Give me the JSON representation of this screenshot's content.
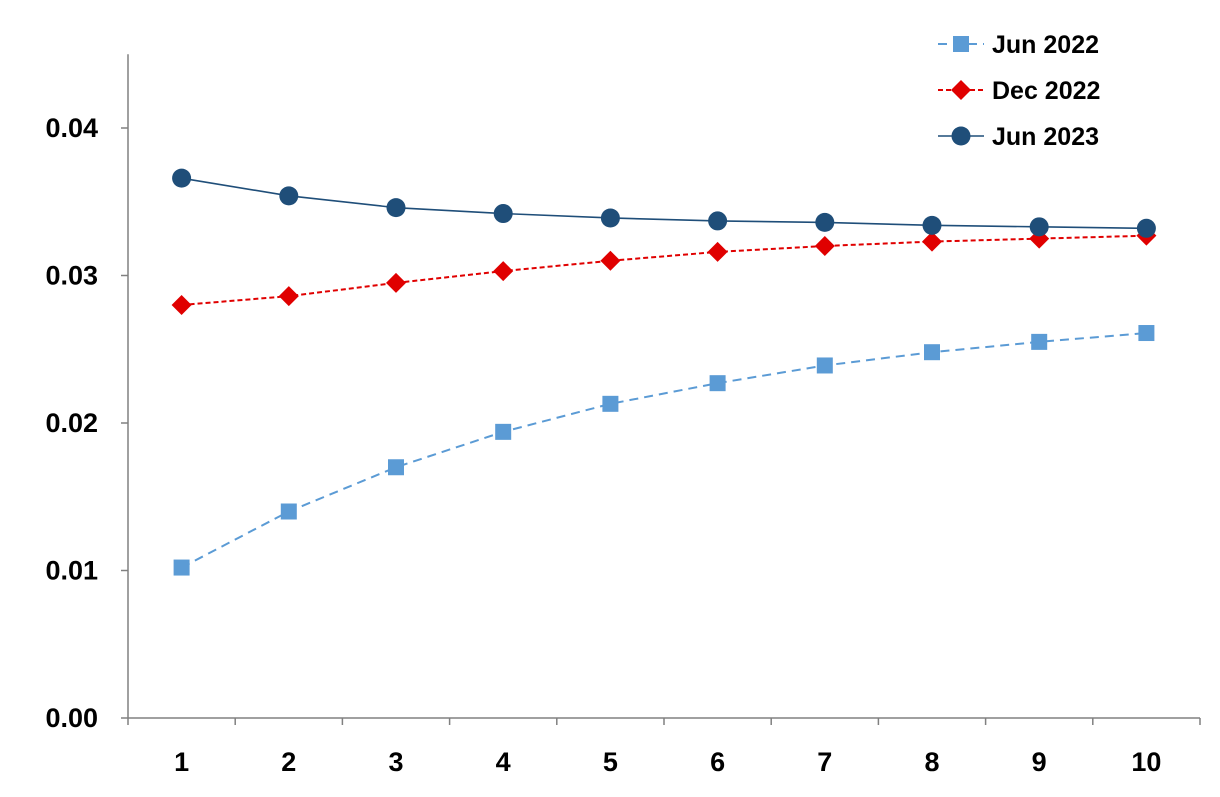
{
  "chart_data": {
    "type": "line",
    "title": "",
    "xlabel": "",
    "ylabel": "",
    "x": [
      1,
      2,
      3,
      4,
      5,
      6,
      7,
      8,
      9,
      10
    ],
    "x_tick_labels": [
      "1",
      "2",
      "3",
      "4",
      "5",
      "6",
      "7",
      "8",
      "9",
      "10"
    ],
    "ylim": [
      0,
      0.045
    ],
    "y_ticks": [
      0,
      0.01,
      0.02,
      0.03,
      0.04
    ],
    "y_tick_labels": [
      "0.00",
      "0.01",
      "0.02",
      "0.03",
      "0.04"
    ],
    "grid": false,
    "legend_position": "top-right",
    "series": [
      {
        "name": "Jun 2022",
        "color": "#5B9BD5",
        "line_style": "dashed",
        "marker": "square",
        "values": [
          0.0102,
          0.014,
          0.017,
          0.0194,
          0.0213,
          0.0227,
          0.0239,
          0.0248,
          0.0255,
          0.0261
        ]
      },
      {
        "name": "Dec 2022",
        "color": "#E00000",
        "line_style": "dotted",
        "marker": "diamond",
        "values": [
          0.028,
          0.0286,
          0.0295,
          0.0303,
          0.031,
          0.0316,
          0.032,
          0.0323,
          0.0325,
          0.0327
        ]
      },
      {
        "name": "Jun 2023",
        "color": "#1F4E79",
        "line_style": "solid",
        "marker": "circle",
        "values": [
          0.0366,
          0.0354,
          0.0346,
          0.0342,
          0.0339,
          0.0337,
          0.0336,
          0.0334,
          0.0333,
          0.0332
        ]
      }
    ]
  }
}
